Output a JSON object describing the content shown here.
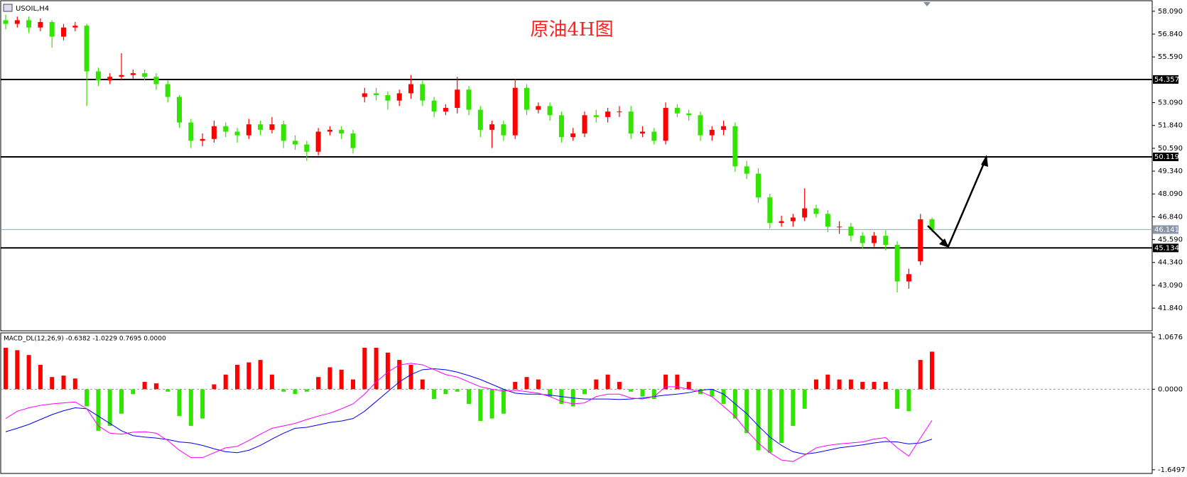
{
  "chart_data": [
    {
      "type": "candlestick",
      "symbol": "USOIL,H4",
      "title": "原油4H图",
      "up_color": "#ff0000",
      "down_color": "#33e400",
      "open": [
        57.6,
        57.4,
        57.6,
        57.2,
        57.5,
        56.7,
        57.2,
        57.3,
        54.8,
        54.3,
        54.5,
        54.6,
        54.7,
        54.5,
        54.1,
        53.4,
        52.0,
        51.0,
        51.1,
        51.8,
        51.5,
        51.3,
        51.9,
        51.6,
        51.9,
        51.0,
        50.8,
        50.4,
        51.5,
        51.6,
        51.4,
        53.4,
        53.6,
        53.5,
        53.2,
        53.6,
        54.1,
        53.2,
        52.6,
        52.8,
        53.8,
        52.7,
        51.6,
        51.9,
        51.3,
        53.9,
        52.7,
        52.9,
        52.4,
        51.2,
        51.4,
        52.4,
        52.3,
        52.6,
        52.6,
        51.4,
        51.5,
        51.0,
        52.8,
        52.5,
        52.4,
        51.3,
        51.6,
        51.8,
        49.6,
        49.2,
        47.9,
        46.5,
        46.6,
        46.8,
        47.3,
        47.0,
        46.3,
        46.3,
        45.8,
        45.4,
        45.8,
        45.3,
        43.3,
        44.4,
        46.7
      ],
      "high": [
        57.9,
        57.8,
        57.8,
        57.7,
        57.6,
        57.4,
        57.5,
        57.4,
        55.0,
        54.7,
        55.8,
        54.9,
        54.9,
        54.7,
        54.3,
        53.5,
        52.2,
        51.4,
        52.1,
        52.0,
        51.7,
        52.2,
        52.1,
        52.3,
        52.1,
        51.3,
        51.0,
        51.7,
        51.8,
        51.8,
        51.6,
        53.9,
        53.9,
        53.7,
        53.8,
        54.6,
        54.3,
        53.4,
        53.0,
        54.5,
        54.0,
        52.9,
        52.1,
        52.1,
        54.4,
        54.1,
        53.1,
        53.1,
        52.6,
        51.7,
        52.6,
        52.7,
        52.8,
        52.9,
        52.9,
        51.8,
        51.7,
        53.1,
        53.0,
        52.7,
        52.6,
        51.8,
        52.1,
        52.0,
        49.9,
        49.5,
        48.1,
        46.9,
        47.0,
        48.4,
        47.5,
        47.2,
        46.6,
        46.5,
        46.0,
        46.0,
        46.1,
        45.5,
        44.0,
        47.0,
        46.8
      ],
      "low": [
        57.1,
        57.2,
        56.9,
        57.0,
        56.1,
        56.5,
        57.0,
        52.9,
        54.0,
        54.1,
        54.3,
        54.4,
        54.3,
        53.8,
        53.1,
        51.7,
        50.6,
        50.7,
        50.9,
        51.2,
        50.9,
        51.1,
        51.3,
        51.4,
        50.6,
        50.5,
        49.9,
        50.2,
        51.3,
        51.1,
        50.3,
        53.1,
        53.2,
        52.7,
        52.9,
        53.3,
        52.9,
        52.3,
        52.4,
        52.5,
        52.4,
        51.2,
        50.6,
        51.0,
        51.1,
        52.4,
        52.5,
        52.1,
        50.9,
        51.0,
        51.2,
        52.0,
        52.0,
        52.3,
        51.1,
        51.2,
        50.8,
        50.8,
        52.3,
        52.1,
        51.0,
        51.0,
        51.3,
        49.3,
        48.9,
        47.6,
        46.2,
        46.3,
        46.3,
        46.6,
        46.8,
        46.0,
        45.9,
        45.5,
        45.1,
        45.2,
        45.0,
        42.7,
        42.9,
        44.2,
        46.0
      ],
      "close": [
        57.4,
        57.6,
        57.2,
        57.5,
        56.7,
        57.2,
        57.3,
        54.8,
        54.3,
        54.5,
        54.6,
        54.7,
        54.5,
        54.1,
        53.4,
        52.0,
        51.0,
        51.1,
        51.8,
        51.5,
        51.3,
        51.9,
        51.6,
        51.9,
        51.0,
        50.8,
        50.4,
        51.5,
        51.6,
        51.4,
        50.6,
        53.6,
        53.5,
        53.2,
        53.6,
        54.1,
        53.2,
        52.6,
        52.8,
        53.8,
        52.7,
        51.6,
        51.9,
        51.3,
        53.9,
        52.7,
        52.9,
        52.4,
        51.2,
        51.4,
        52.4,
        52.3,
        52.6,
        52.6,
        51.4,
        51.5,
        51.0,
        52.8,
        52.5,
        52.4,
        51.3,
        51.6,
        51.8,
        49.6,
        49.2,
        47.9,
        46.5,
        46.6,
        46.8,
        47.3,
        47.0,
        46.3,
        46.3,
        45.8,
        45.4,
        45.8,
        45.3,
        43.3,
        43.7,
        46.7,
        46.14
      ],
      "ylim": [
        40.6,
        58.59
      ],
      "yticks": [
        {
          "value": 58.09,
          "label": "58.090"
        },
        {
          "value": 56.84,
          "label": "56.840"
        },
        {
          "value": 55.59,
          "label": "55.590"
        },
        {
          "value": 53.09,
          "label": "53.090"
        },
        {
          "value": 51.84,
          "label": "51.840"
        },
        {
          "value": 50.59,
          "label": "50.590"
        },
        {
          "value": 49.34,
          "label": "49.340"
        },
        {
          "value": 48.09,
          "label": "48.090"
        },
        {
          "value": 46.84,
          "label": "46.840"
        },
        {
          "value": 45.59,
          "label": "45.590"
        },
        {
          "value": 44.34,
          "label": "44.340"
        },
        {
          "value": 43.09,
          "label": "43.090"
        },
        {
          "value": 41.84,
          "label": "41.840"
        }
      ],
      "levels": [
        54.357,
        50.119,
        45.134
      ],
      "current_price": 46.141
    },
    {
      "type": "macd",
      "label": "MACD_DL(12,26,9) -0.6382 -1.0229 0.7695 0.0000",
      "histogram": {
        "up_color": "#ff0000",
        "down_color": "#33e400",
        "values": [
          0.85,
          0.8,
          0.7,
          0.5,
          0.25,
          0.28,
          0.22,
          -0.35,
          -0.85,
          -0.75,
          -0.5,
          -0.1,
          0.15,
          0.12,
          -0.05,
          -0.55,
          -0.75,
          -0.6,
          0.1,
          0.3,
          0.5,
          0.55,
          0.6,
          0.3,
          -0.05,
          -0.1,
          -0.05,
          0.25,
          0.45,
          0.4,
          0.2,
          0.85,
          0.85,
          0.75,
          0.6,
          0.5,
          0.2,
          -0.2,
          -0.1,
          -0.05,
          -0.3,
          -0.65,
          -0.6,
          -0.5,
          0.15,
          0.25,
          0.2,
          -0.15,
          -0.3,
          -0.35,
          -0.1,
          0.2,
          0.3,
          0.15,
          -0.05,
          -0.15,
          -0.2,
          0.3,
          0.3,
          0.15,
          -0.1,
          -0.15,
          -0.3,
          -0.6,
          -0.9,
          -1.25,
          -1.3,
          -1.1,
          -0.75,
          -0.4,
          0.2,
          0.3,
          0.2,
          0.2,
          0.15,
          0.15,
          0.15,
          -0.4,
          -0.45,
          0.6,
          0.7695
        ]
      },
      "macd_line": {
        "color": "#ff00ff",
        "values": [
          -0.6,
          -0.45,
          -0.38,
          -0.33,
          -0.3,
          -0.28,
          -0.26,
          -0.4,
          -0.75,
          -0.9,
          -0.92,
          -0.88,
          -0.87,
          -0.9,
          -1.05,
          -1.25,
          -1.4,
          -1.4,
          -1.3,
          -1.2,
          -1.17,
          -1.05,
          -0.92,
          -0.8,
          -0.75,
          -0.7,
          -0.62,
          -0.55,
          -0.49,
          -0.4,
          -0.3,
          -0.1,
          0.15,
          0.35,
          0.5,
          0.53,
          0.5,
          0.4,
          0.3,
          0.25,
          0.15,
          0.05,
          0.0,
          -0.04,
          -0.02,
          -0.05,
          -0.08,
          -0.15,
          -0.25,
          -0.3,
          -0.28,
          -0.15,
          -0.1,
          -0.1,
          -0.18,
          -0.2,
          -0.15,
          0.05,
          0.05,
          0.0,
          -0.05,
          -0.15,
          -0.35,
          -0.56,
          -0.85,
          -1.1,
          -1.3,
          -1.45,
          -1.48,
          -1.35,
          -1.2,
          -1.15,
          -1.12,
          -1.1,
          -1.08,
          -1.02,
          -0.99,
          -1.2,
          -1.37,
          -1.0,
          -0.6382
        ]
      },
      "signal_line": {
        "color": "#0000ff",
        "values": [
          -0.87,
          -0.8,
          -0.72,
          -0.62,
          -0.52,
          -0.44,
          -0.38,
          -0.4,
          -0.55,
          -0.7,
          -0.85,
          -0.95,
          -0.98,
          -1.0,
          -1.03,
          -1.08,
          -1.1,
          -1.15,
          -1.22,
          -1.28,
          -1.3,
          -1.25,
          -1.15,
          -1.02,
          -0.9,
          -0.8,
          -0.78,
          -0.73,
          -0.68,
          -0.65,
          -0.6,
          -0.45,
          -0.25,
          -0.05,
          0.15,
          0.3,
          0.4,
          0.42,
          0.4,
          0.35,
          0.28,
          0.2,
          0.1,
          0.0,
          -0.08,
          -0.1,
          -0.1,
          -0.12,
          -0.15,
          -0.18,
          -0.2,
          -0.2,
          -0.2,
          -0.21,
          -0.2,
          -0.18,
          -0.15,
          -0.12,
          -0.1,
          -0.07,
          -0.02,
          0.0,
          -0.1,
          -0.3,
          -0.5,
          -0.75,
          -0.98,
          -1.15,
          -1.28,
          -1.33,
          -1.3,
          -1.25,
          -1.2,
          -1.17,
          -1.14,
          -1.1,
          -1.07,
          -1.08,
          -1.12,
          -1.1,
          -1.0229
        ]
      },
      "ylim": [
        -1.71,
        1.11
      ],
      "yticks": [
        {
          "value": 1.0676,
          "label": "1.0676"
        },
        {
          "value": 0,
          "label": "0.0000"
        },
        {
          "value": -1.6497,
          "label": "-1.6497"
        }
      ]
    }
  ]
}
